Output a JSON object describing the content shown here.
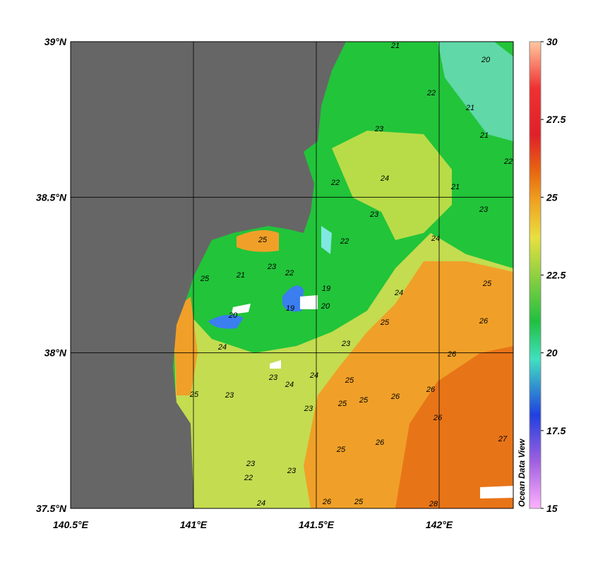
{
  "map": {
    "xlim": [
      140.5,
      142.3
    ],
    "ylim": [
      37.5,
      39
    ],
    "xticks": [
      {
        "value": 140.5,
        "label": "140.5°E"
      },
      {
        "value": 141,
        "label": "141°E"
      },
      {
        "value": 141.5,
        "label": "141.5°E"
      },
      {
        "value": 142,
        "label": "142°E"
      }
    ],
    "yticks": [
      {
        "value": 37.5,
        "label": "37.5°N"
      },
      {
        "value": 38,
        "label": "38°N"
      },
      {
        "value": 38.5,
        "label": "38.5°N"
      },
      {
        "value": 39,
        "label": "39°N"
      }
    ],
    "grid": true,
    "colorbar": {
      "lim": [
        15,
        30
      ],
      "ticks": [
        30,
        27.5,
        25,
        22.5,
        20,
        17.5,
        15
      ]
    },
    "credit": "Ocean Data View",
    "contour_labels": [
      21,
      20,
      22,
      21,
      23,
      21,
      24,
      22,
      22,
      23,
      23,
      21,
      24,
      22,
      25,
      23,
      22,
      21,
      25,
      19,
      19,
      20,
      24,
      20,
      25,
      23,
      24,
      23,
      24,
      24,
      25,
      25,
      23,
      25,
      26,
      26,
      26,
      25,
      26,
      23,
      25,
      26,
      26,
      27,
      23,
      22,
      23,
      25,
      26,
      25,
      28,
      24
    ]
  }
}
